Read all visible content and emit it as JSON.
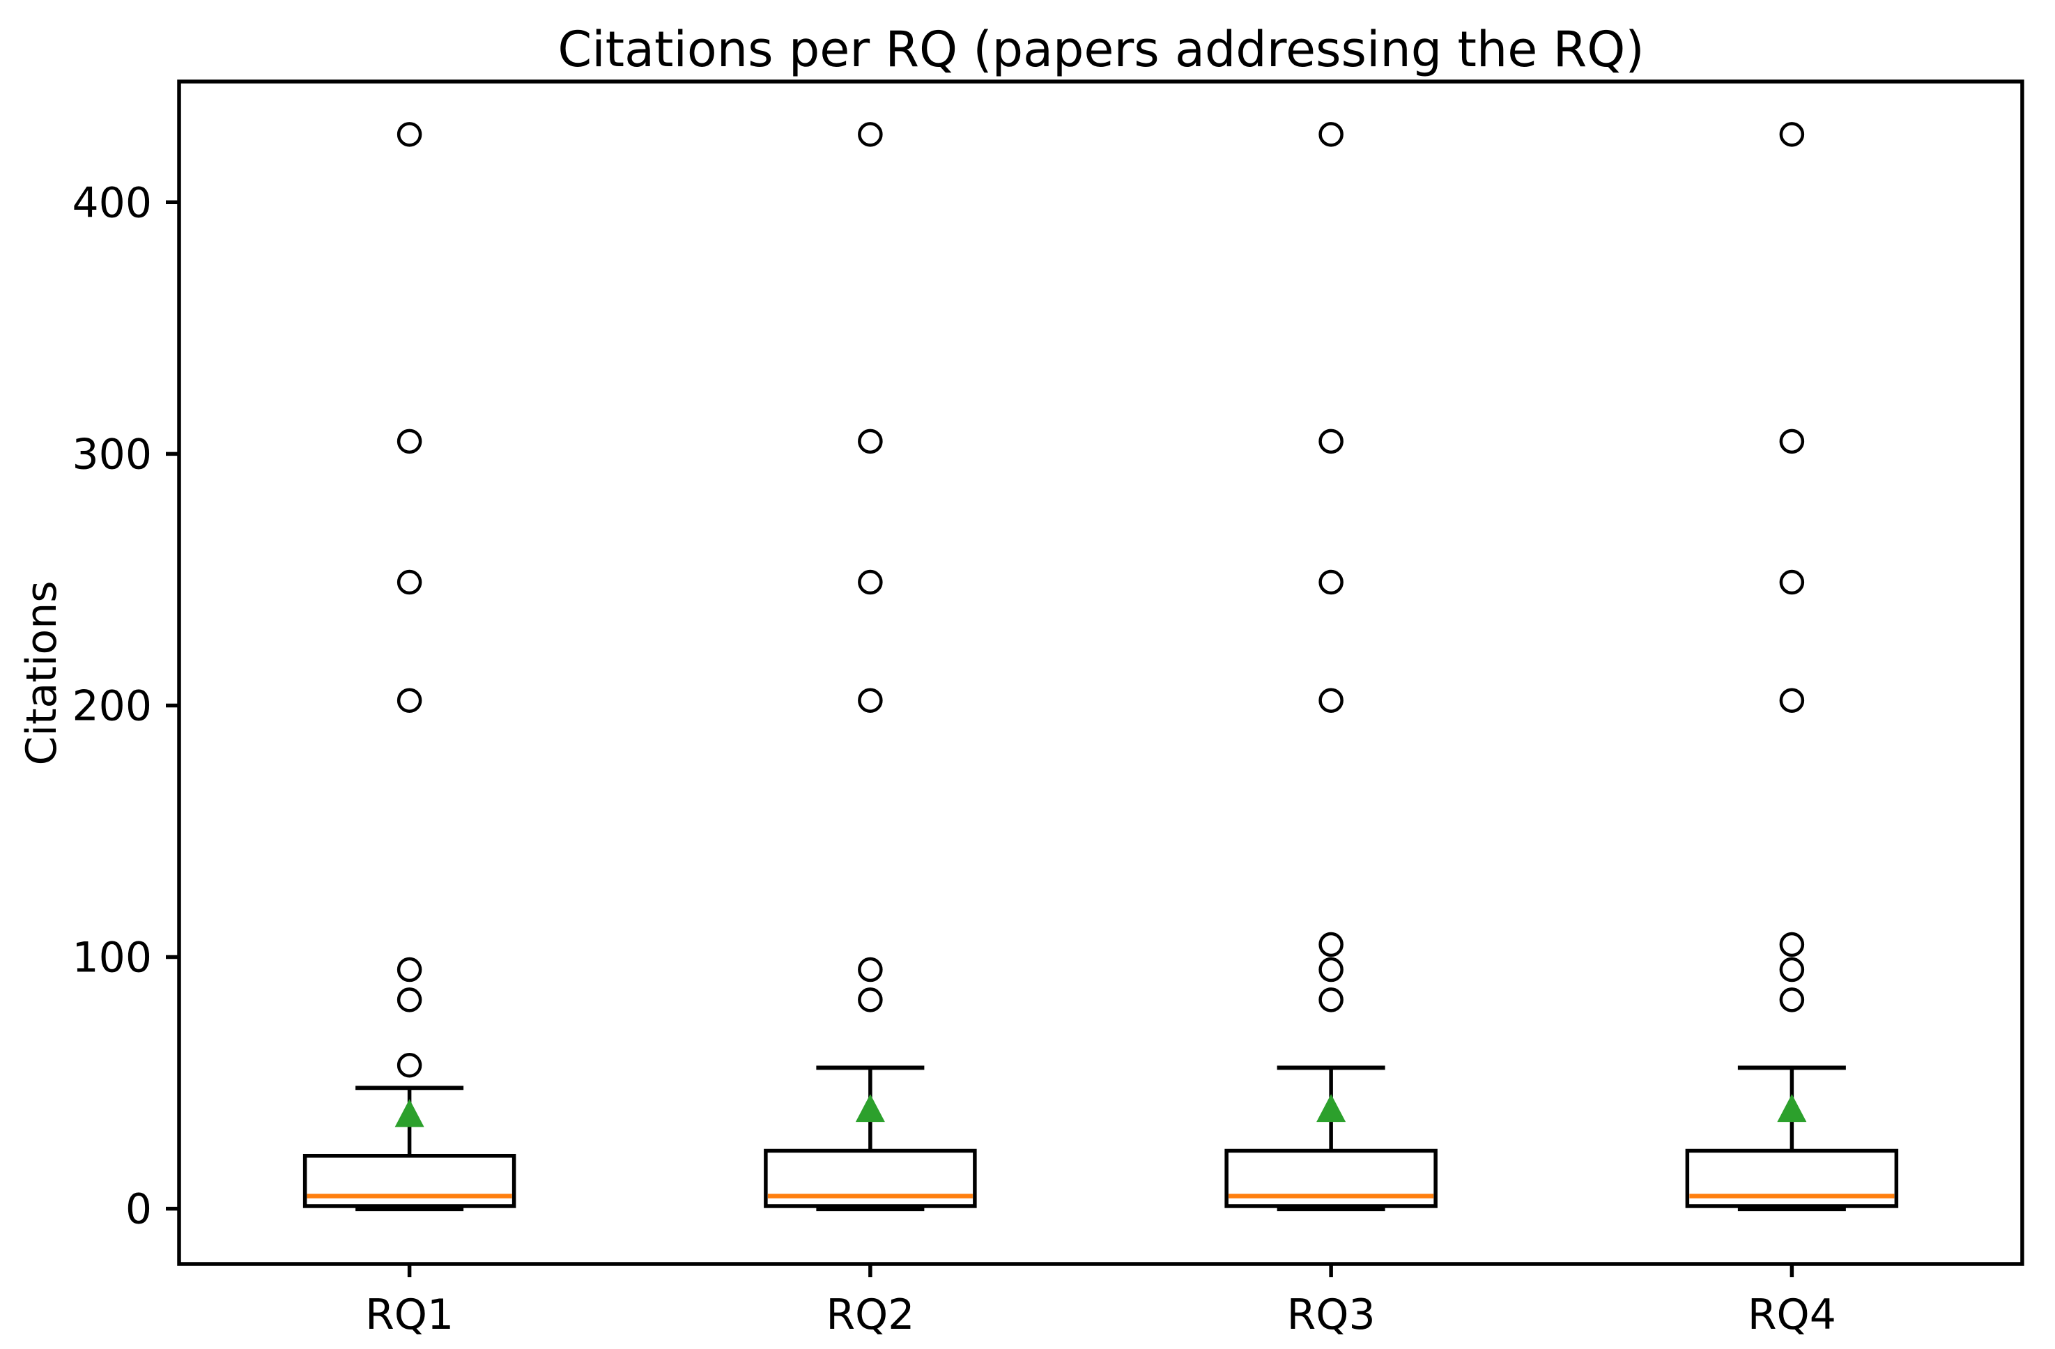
{
  "chart_data": {
    "type": "boxplot",
    "title": "Citations per RQ (papers addressing the RQ)",
    "ylabel": "Citations",
    "xlabel": "",
    "categories": [
      "RQ1",
      "RQ2",
      "RQ3",
      "RQ4"
    ],
    "yticks": [
      0,
      100,
      200,
      300,
      400
    ],
    "ylim": [
      -22,
      448
    ],
    "grid": false,
    "legend": "none",
    "series": [
      {
        "label": "RQ1",
        "whisker_low": 0,
        "q1": 1,
        "median": 5,
        "q3": 21,
        "whisker_high": 48,
        "mean": 38,
        "outliers": [
          57,
          83,
          95,
          202,
          249,
          305,
          427
        ]
      },
      {
        "label": "RQ2",
        "whisker_low": 0,
        "q1": 1,
        "median": 5,
        "q3": 23,
        "whisker_high": 56,
        "mean": 40,
        "outliers": [
          83,
          95,
          202,
          249,
          305,
          427
        ]
      },
      {
        "label": "RQ3",
        "whisker_low": 0,
        "q1": 1,
        "median": 5,
        "q3": 23,
        "whisker_high": 56,
        "mean": 40,
        "outliers": [
          83,
          95,
          105,
          202,
          249,
          305,
          427
        ]
      },
      {
        "label": "RQ4",
        "whisker_low": 0,
        "q1": 1,
        "median": 5,
        "q3": 23,
        "whisker_high": 56,
        "mean": 40,
        "outliers": [
          83,
          95,
          105,
          202,
          249,
          305,
          427
        ]
      }
    ],
    "colors": {
      "box": "#000000",
      "whisker": "#000000",
      "median": "#ff7f0e",
      "mean_marker": "#2ca02c",
      "outlier": "#000000",
      "background": "#ffffff"
    }
  }
}
